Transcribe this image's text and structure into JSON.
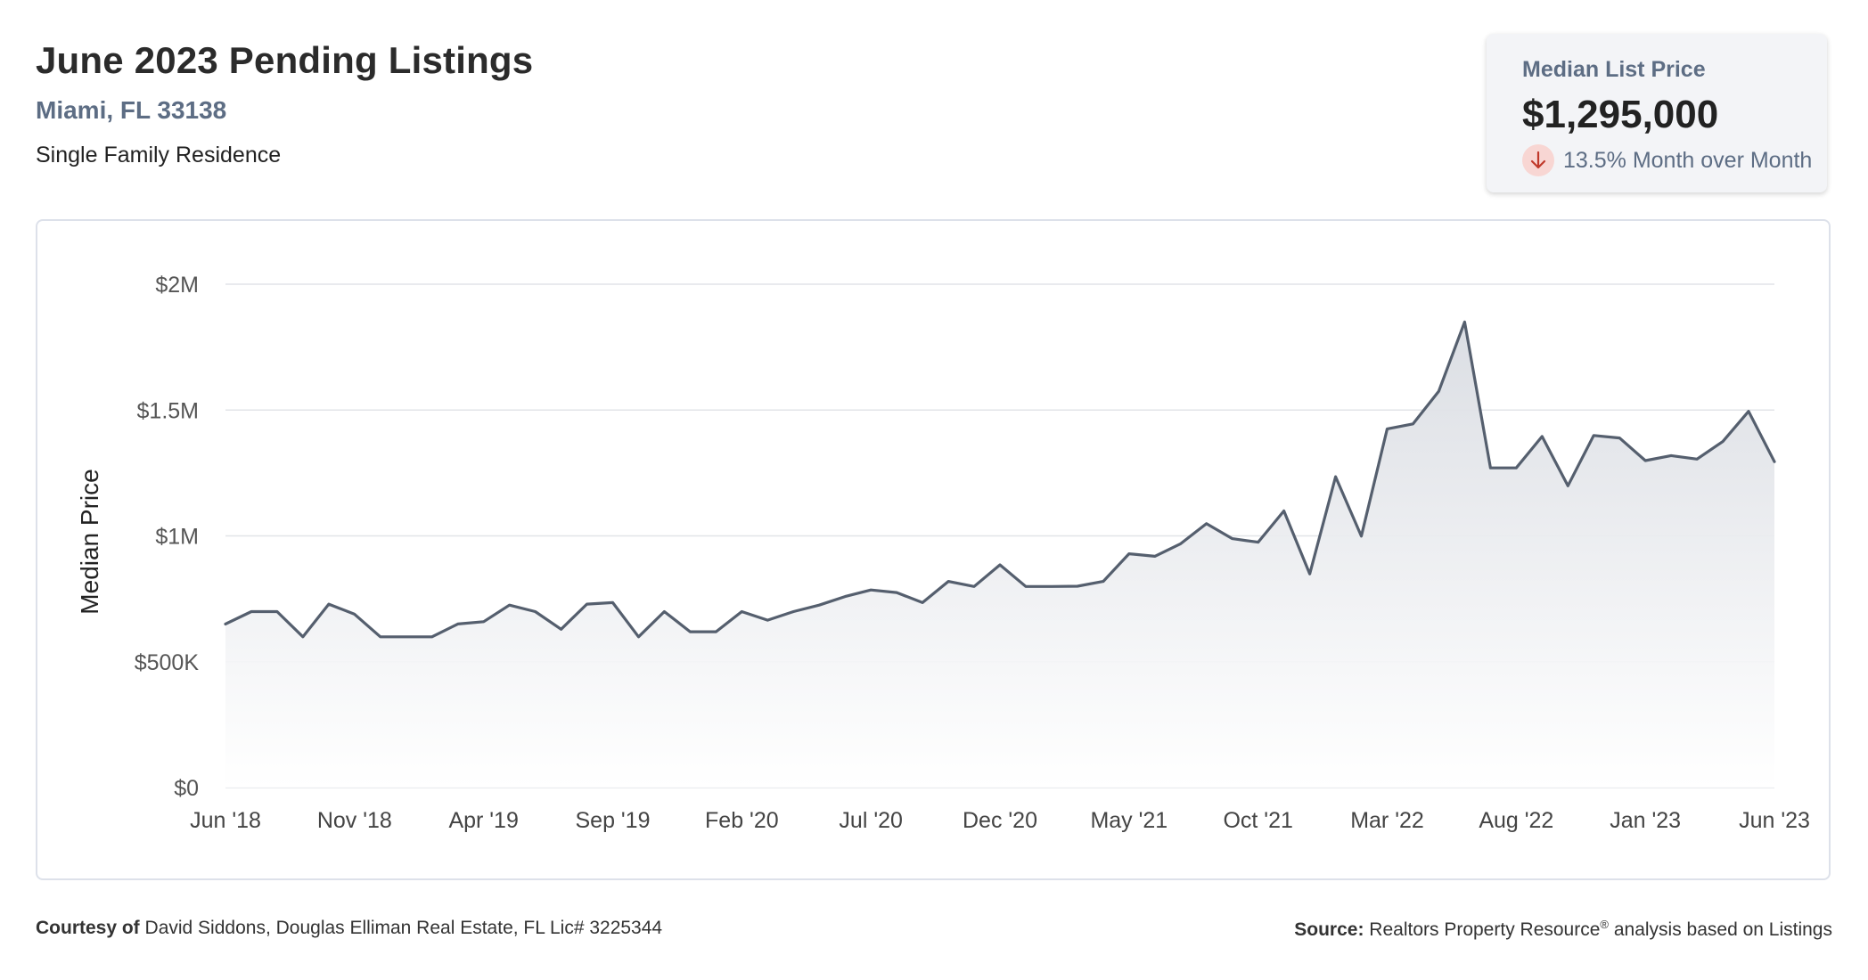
{
  "header": {
    "title": "June 2023 Pending Listings",
    "location": "Miami, FL 33138",
    "property_type": "Single Family Residence"
  },
  "stat_card": {
    "label": "Median List Price",
    "value": "$1,295,000",
    "change": "13.5% Month over Month",
    "direction": "down",
    "icon": "arrow-down-icon",
    "badge_color": "#f8d6d3",
    "arrow_color": "#c0392b"
  },
  "footer": {
    "courtesy_label": "Courtesy of",
    "courtesy_text": "David Siddons, Douglas Elliman Real Estate, FL Lic# 3225344",
    "source_label": "Source:",
    "source_text": "Realtors Property Resource",
    "source_mark": "®",
    "source_suffix": " analysis based on Listings"
  },
  "chart_data": {
    "type": "area",
    "title": "",
    "xlabel": "",
    "ylabel": "Median Price",
    "ylim": [
      0,
      2000000
    ],
    "yticks": [
      {
        "value": 0,
        "label": "$0"
      },
      {
        "value": 500000,
        "label": "$500K"
      },
      {
        "value": 1000000,
        "label": "$1M"
      },
      {
        "value": 1500000,
        "label": "$1.5M"
      },
      {
        "value": 2000000,
        "label": "$2M"
      }
    ],
    "xticks": [
      {
        "index": 0,
        "label": "Jun '18"
      },
      {
        "index": 5,
        "label": "Nov '18"
      },
      {
        "index": 10,
        "label": "Apr '19"
      },
      {
        "index": 15,
        "label": "Sep '19"
      },
      {
        "index": 20,
        "label": "Feb '20"
      },
      {
        "index": 25,
        "label": "Jul '20"
      },
      {
        "index": 30,
        "label": "Dec '20"
      },
      {
        "index": 35,
        "label": "May '21"
      },
      {
        "index": 40,
        "label": "Oct '21"
      },
      {
        "index": 45,
        "label": "Mar '22"
      },
      {
        "index": 50,
        "label": "Aug '22"
      },
      {
        "index": 55,
        "label": "Jan '23"
      },
      {
        "index": 60,
        "label": "Jun '23"
      }
    ],
    "grid": true,
    "line_color": "#555f6e",
    "series": [
      {
        "values": [
          650000,
          699000,
          699000,
          599000,
          729000,
          689000,
          599000,
          599000,
          599000,
          650000,
          659000,
          725000,
          699000,
          629000,
          729000,
          735000,
          599000,
          699000,
          619000,
          619000,
          699000,
          665000,
          699000,
          725000,
          759000,
          785000,
          775000,
          735000,
          819000,
          799000,
          885000,
          799000,
          799000,
          800000,
          819000,
          929000,
          919000,
          969000,
          1049000,
          989000,
          975000,
          1099000,
          849000,
          1235000,
          999000,
          1425000,
          1445000,
          1575000,
          1850000,
          1270000,
          1270000,
          1395000,
          1199000,
          1399000,
          1389000,
          1299000,
          1319000,
          1305000,
          1375000,
          1495000,
          1295000
        ]
      }
    ]
  }
}
